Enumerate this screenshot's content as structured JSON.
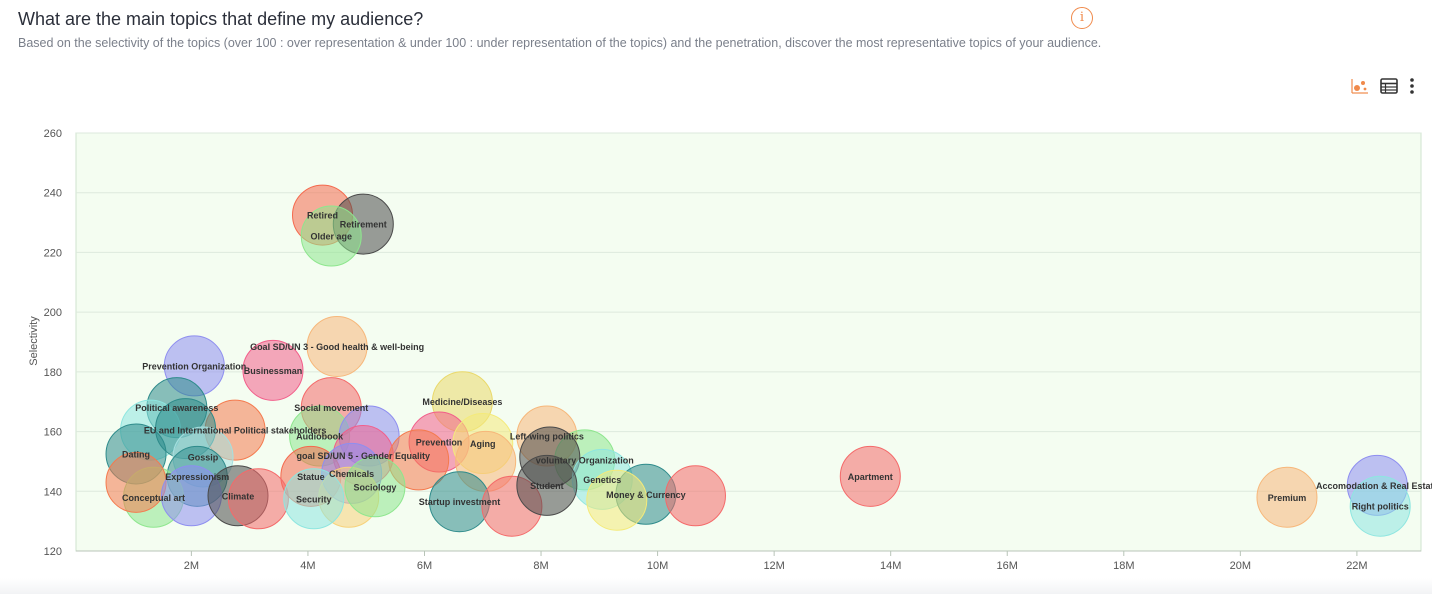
{
  "header": {
    "title": "What are the main topics that define my audience?",
    "subtitle": "Based on the selectivity of the topics (over 100 : over representation & under 100 : under representation of the topics) and the penetration, discover the most representative topics of your audience.",
    "info_icon": "info-icon",
    "accent_color": "#f08a4b"
  },
  "toolbar": {
    "icons": [
      "bubble-chart-icon",
      "table-view-icon",
      "more-vertical-icon"
    ]
  },
  "chart_data": {
    "type": "scatter",
    "ylabel": "Selectivity",
    "xlabel": "",
    "xlim": [
      0.02,
      23.1
    ],
    "ylim": [
      120,
      260
    ],
    "xticks": [
      2,
      4,
      6,
      8,
      10,
      12,
      14,
      16,
      18,
      20,
      22
    ],
    "xtick_labels": [
      "2M",
      "4M",
      "6M",
      "8M",
      "10M",
      "12M",
      "14M",
      "16M",
      "18M",
      "20M",
      "22M"
    ],
    "yticks": [
      120,
      140,
      160,
      180,
      200,
      220,
      240,
      260
    ],
    "background": "#f4fdf1",
    "grid": true,
    "points": [
      {
        "label": "Retired",
        "x": 4.25,
        "y": 232.5,
        "color": "#f46a4e"
      },
      {
        "label": "Retirement",
        "x": 4.95,
        "y": 229.5,
        "color": "#4a4a4a"
      },
      {
        "label": "Older age",
        "x": 4.4,
        "y": 225.5,
        "color": "#8ee68e"
      },
      {
        "label": "Goal SD/UN 3 - Good health & well-being",
        "x": 4.5,
        "y": 188.5,
        "color": "#f7b77a"
      },
      {
        "label": "Prevention Organization",
        "x": 2.05,
        "y": 182,
        "color": "#8e8ef0"
      },
      {
        "label": "Businessman",
        "x": 3.4,
        "y": 180.5,
        "color": "#f25e8a"
      },
      {
        "label": "Social movement",
        "x": 4.4,
        "y": 168,
        "color": "#f46a6a"
      },
      {
        "label": "Political awareness",
        "x": 1.75,
        "y": 168,
        "color": "#2e8b8b"
      },
      {
        "label": "Medicine/Diseases",
        "x": 6.65,
        "y": 170,
        "color": "#ead96a"
      },
      {
        "label": "EU and International Political stakeholders",
        "x": 2.75,
        "y": 160.5,
        "color": "#f47a4e"
      },
      {
        "label": "",
        "x": 1.3,
        "y": 160.5,
        "color": "#8ee6e0"
      },
      {
        "label": "",
        "x": 1.9,
        "y": 161,
        "color": "#2e8b8b"
      },
      {
        "label": "Audiobook",
        "x": 4.2,
        "y": 158.5,
        "color": "#8ee68e"
      },
      {
        "label": "",
        "x": 5.05,
        "y": 158.5,
        "color": "#8e8ef0"
      },
      {
        "label": "Prevention",
        "x": 6.25,
        "y": 156.5,
        "color": "#f25e8a"
      },
      {
        "label": "Aging",
        "x": 7.0,
        "y": 156,
        "color": "#f4ea7a"
      },
      {
        "label": "Left-wing politics",
        "x": 8.1,
        "y": 158.5,
        "color": "#f7b77a"
      },
      {
        "label": "Dating",
        "x": 1.05,
        "y": 152.5,
        "color": "#2e8b8b"
      },
      {
        "label": "Gossip",
        "x": 2.2,
        "y": 151.5,
        "color": "#a6e0e0"
      },
      {
        "label": "goal SD/UN 5 - Gender Equality",
        "x": 4.95,
        "y": 152,
        "color": "#f25e8a"
      },
      {
        "label": "",
        "x": 5.9,
        "y": 150.5,
        "color": "#f47a4e"
      },
      {
        "label": "",
        "x": 7.05,
        "y": 150,
        "color": "#f7b77a"
      },
      {
        "label": "voluntary Organization",
        "x": 8.75,
        "y": 150.5,
        "color": "#8ee68e"
      },
      {
        "label": "",
        "x": 8.15,
        "y": 151.5,
        "color": "#4a4a4a"
      },
      {
        "label": "Expressionism",
        "x": 2.1,
        "y": 145,
        "color": "#2e8b8b"
      },
      {
        "label": "Statue",
        "x": 4.05,
        "y": 145,
        "color": "#f46a4e"
      },
      {
        "label": "Chemicals",
        "x": 4.75,
        "y": 146,
        "color": "#8e8ef0"
      },
      {
        "label": "",
        "x": 4.7,
        "y": 138,
        "color": "#f7d27a"
      },
      {
        "label": "Sociology",
        "x": 5.15,
        "y": 141.5,
        "color": "#8ee68e"
      },
      {
        "label": "Genetics",
        "x": 9.05,
        "y": 144,
        "color": "#8ee6e0"
      },
      {
        "label": "Apartment",
        "x": 13.65,
        "y": 145,
        "color": "#f46a6a"
      },
      {
        "label": "Conceptual art",
        "x": 1.35,
        "y": 138,
        "color": "#8ee68e"
      },
      {
        "label": "",
        "x": 1.05,
        "y": 143,
        "color": "#f47a4e"
      },
      {
        "label": "",
        "x": 2.0,
        "y": 138.5,
        "color": "#8e8ef0"
      },
      {
        "label": "Climate",
        "x": 2.8,
        "y": 138.5,
        "color": "#4a4a4a"
      },
      {
        "label": "",
        "x": 3.15,
        "y": 137.5,
        "color": "#f46a6a"
      },
      {
        "label": "Security",
        "x": 4.1,
        "y": 137.5,
        "color": "#8ee6e0"
      },
      {
        "label": "Startup investment",
        "x": 6.6,
        "y": 136.5,
        "color": "#2e8b8b"
      },
      {
        "label": "",
        "x": 7.5,
        "y": 135,
        "color": "#f46a6a"
      },
      {
        "label": "Student",
        "x": 8.1,
        "y": 142,
        "color": "#4a4a4a"
      },
      {
        "label": "Money & Currency",
        "x": 9.8,
        "y": 139,
        "color": "#2e8b8b"
      },
      {
        "label": "",
        "x": 9.3,
        "y": 137,
        "color": "#f4ea7a"
      },
      {
        "label": "",
        "x": 10.65,
        "y": 138.5,
        "color": "#f46a6a"
      },
      {
        "label": "Premium",
        "x": 20.8,
        "y": 138,
        "color": "#f7b77a"
      },
      {
        "label": "Accomodation & Real Estate",
        "x": 22.35,
        "y": 142,
        "color": "#8e8ef0"
      },
      {
        "label": "Right politics",
        "x": 22.4,
        "y": 135,
        "color": "#8ee6e0"
      }
    ]
  }
}
